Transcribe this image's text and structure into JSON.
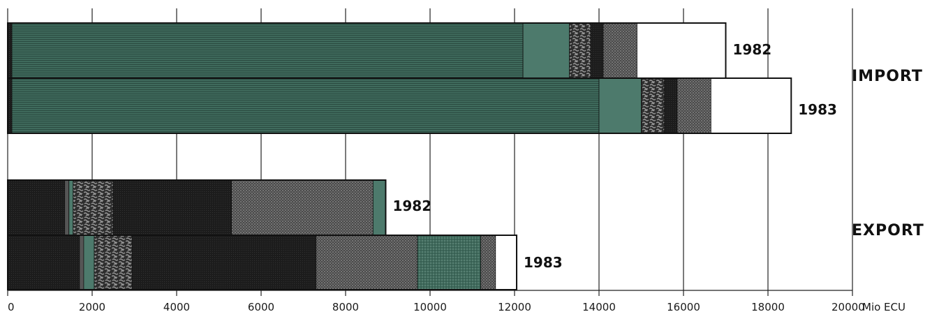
{
  "chart_data": {
    "type": "bar",
    "orientation": "horizontal",
    "stacked": true,
    "unit": "Mio ECU",
    "xlim": [
      0,
      20000
    ],
    "ticks": [
      "0",
      "2000",
      "4000",
      "6000",
      "8000",
      "10000",
      "12000",
      "14000",
      "16000",
      "18000",
      "20000"
    ],
    "grid": true,
    "groups": [
      {
        "label": "IMPORT",
        "bars": [
          {
            "year": "1982",
            "segments": [
              {
                "value": 100,
                "color": "#3a3a3a",
                "pattern": "dark"
              },
              {
                "value": 12100,
                "color": "#3f6a5c",
                "pattern": "hlines"
              },
              {
                "value": 1100,
                "color": "#4d7a6c",
                "pattern": "solid"
              },
              {
                "value": 500,
                "color": "#5a5a5a",
                "pattern": "blobs"
              },
              {
                "value": 300,
                "color": "#222222",
                "pattern": "dark"
              },
              {
                "value": 800,
                "color": "#6a6a6a",
                "pattern": "dots"
              },
              {
                "value": 2100,
                "color": "#ffffff",
                "pattern": "white"
              }
            ]
          },
          {
            "year": "1983",
            "segments": [
              {
                "value": 100,
                "color": "#3a3a3a",
                "pattern": "dark"
              },
              {
                "value": 13900,
                "color": "#3f6a5c",
                "pattern": "hlines"
              },
              {
                "value": 1000,
                "color": "#4d7a6c",
                "pattern": "solid"
              },
              {
                "value": 550,
                "color": "#5a5a5a",
                "pattern": "blobs"
              },
              {
                "value": 300,
                "color": "#222222",
                "pattern": "dark"
              },
              {
                "value": 800,
                "color": "#6a6a6a",
                "pattern": "dots"
              },
              {
                "value": 1900,
                "color": "#ffffff",
                "pattern": "white"
              }
            ]
          }
        ]
      },
      {
        "label": "EXPORT",
        "bars": [
          {
            "year": "1982",
            "segments": [
              {
                "value": 1350,
                "color": "#151515",
                "pattern": "dark"
              },
              {
                "value": 100,
                "color": "#555555",
                "pattern": "solid"
              },
              {
                "value": 100,
                "color": "#4d7a6c",
                "pattern": "solid"
              },
              {
                "value": 950,
                "color": "#5a5a5a",
                "pattern": "blobs"
              },
              {
                "value": 2800,
                "color": "#222222",
                "pattern": "dark"
              },
              {
                "value": 3350,
                "color": "#6a6a6a",
                "pattern": "dots"
              },
              {
                "value": 300,
                "color": "#4d7a6c",
                "pattern": "solid"
              }
            ]
          },
          {
            "year": "1983",
            "segments": [
              {
                "value": 1700,
                "color": "#151515",
                "pattern": "dark"
              },
              {
                "value": 100,
                "color": "#555555",
                "pattern": "solid"
              },
              {
                "value": 250,
                "color": "#4d7a6c",
                "pattern": "solid"
              },
              {
                "value": 900,
                "color": "#5a5a5a",
                "pattern": "blobs"
              },
              {
                "value": 4350,
                "color": "#222222",
                "pattern": "dark"
              },
              {
                "value": 2400,
                "color": "#6a6a6a",
                "pattern": "dots"
              },
              {
                "value": 1500,
                "color": "#4a6e62",
                "pattern": "greendots"
              },
              {
                "value": 350,
                "color": "#6a6a6a",
                "pattern": "dots"
              },
              {
                "value": 500,
                "color": "#ffffff",
                "pattern": "white"
              }
            ]
          }
        ]
      }
    ]
  }
}
